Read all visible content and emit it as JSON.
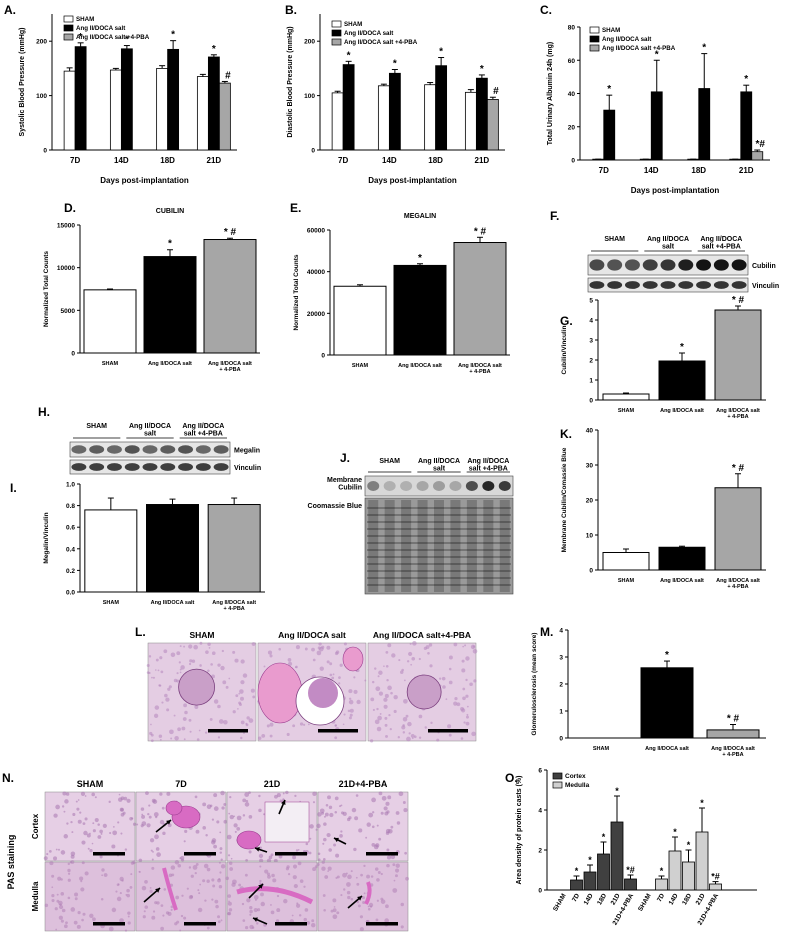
{
  "common": {
    "days_xlabel": "Days post-implantation",
    "groups3": [
      "SHAM",
      "Ang II/DOCA salt",
      "Ang II/DOCA salt\n+ 4-PBA"
    ],
    "legend3": [
      "SHAM",
      "Ang II/DOCA salt",
      "Ang II/DOCA salt +4-PBA"
    ],
    "colors": {
      "sham": "#ffffff",
      "ang": "#000000",
      "pba": "#a6a6a6",
      "cortex": "#404040",
      "medulla": "#d0d0d0"
    }
  },
  "chart_data": [
    {
      "id": "A",
      "type": "bar",
      "panel_label": "A.",
      "ylabel": "Systolic Blood Pressure (mmHg)",
      "xlabel": "Days post-implantation",
      "ylim": [
        0,
        250
      ],
      "yticks": [
        0,
        100,
        200
      ],
      "categories": [
        "7D",
        "14D",
        "18D",
        "21D"
      ],
      "series": [
        {
          "name": "SHAM",
          "values": [
            145,
            147,
            150,
            135
          ],
          "errors": [
            6,
            3,
            5,
            4
          ]
        },
        {
          "name": "Ang II/DOCA salt",
          "values": [
            190,
            186,
            185,
            171
          ],
          "errors": [
            7,
            6,
            16,
            4
          ]
        },
        {
          "name": "Ang II/DOCA salt +4-PBA",
          "values": [
            null,
            null,
            null,
            123
          ],
          "errors": [
            0,
            0,
            0,
            3
          ]
        }
      ],
      "annotations": [
        {
          "text": "*",
          "category": 0,
          "series": 1
        },
        {
          "text": "*",
          "category": 1,
          "series": 1
        },
        {
          "text": "*",
          "category": 2,
          "series": 1
        },
        {
          "text": "*",
          "category": 3,
          "series": 1
        },
        {
          "text": "#",
          "category": 3,
          "series": 2
        }
      ]
    },
    {
      "id": "B",
      "type": "bar",
      "panel_label": "B.",
      "ylabel": "Diastolic Blood Pressure (mmHg)",
      "xlabel": "Days post-implantation",
      "ylim": [
        0,
        250
      ],
      "yticks": [
        0,
        100,
        200
      ],
      "categories": [
        "7D",
        "14D",
        "18D",
        "21D"
      ],
      "series": [
        {
          "name": "SHAM",
          "values": [
            105,
            118,
            120,
            106
          ],
          "errors": [
            3,
            3,
            4,
            5
          ]
        },
        {
          "name": "Ang II/DOCA salt",
          "values": [
            157,
            141,
            155,
            132
          ],
          "errors": [
            6,
            7,
            15,
            6
          ]
        },
        {
          "name": "Ang II/DOCA salt +4-PBA",
          "values": [
            null,
            null,
            null,
            93
          ],
          "errors": [
            0,
            0,
            0,
            4
          ]
        }
      ],
      "annotations": [
        {
          "text": "*",
          "category": 0,
          "series": 1
        },
        {
          "text": "*",
          "category": 1,
          "series": 1
        },
        {
          "text": "*",
          "category": 2,
          "series": 1
        },
        {
          "text": "*",
          "category": 3,
          "series": 1
        },
        {
          "text": "#",
          "category": 3,
          "series": 2
        }
      ]
    },
    {
      "id": "C",
      "type": "bar",
      "panel_label": "C.",
      "ylabel": "Total Urinary Albumin 24h (mg)",
      "xlabel": "Days post-implantation",
      "ylim": [
        0,
        80
      ],
      "yticks": [
        0,
        20,
        40,
        60,
        80
      ],
      "categories": [
        "7D",
        "14D",
        "18D",
        "21D"
      ],
      "series": [
        {
          "name": "SHAM",
          "values": [
            0.5,
            0.5,
            0.5,
            0.5
          ],
          "errors": [
            0,
            0,
            0,
            0
          ]
        },
        {
          "name": "Ang II/DOCA salt",
          "values": [
            30,
            41,
            43,
            41
          ],
          "errors": [
            9,
            19,
            21,
            4
          ]
        },
        {
          "name": "Ang II/DOCA salt +4-PBA",
          "values": [
            null,
            null,
            null,
            5
          ],
          "errors": [
            0,
            0,
            0,
            1
          ]
        }
      ],
      "annotations": [
        {
          "text": "*",
          "category": 0,
          "series": 1
        },
        {
          "text": "*",
          "category": 1,
          "series": 1
        },
        {
          "text": "*",
          "category": 2,
          "series": 1
        },
        {
          "text": "*",
          "category": 3,
          "series": 1
        },
        {
          "text": "*#",
          "category": 3,
          "series": 2
        }
      ]
    },
    {
      "id": "D",
      "type": "bar",
      "panel_label": "D.",
      "title": "CUBILIN",
      "ylabel": "Normalized Total Counts",
      "ylim": [
        0,
        15000
      ],
      "yticks": [
        0,
        5000,
        10000,
        15000
      ],
      "categories": [
        "SHAM",
        "Ang II/DOCA salt",
        "Ang II/DOCA salt\n+ 4-PBA"
      ],
      "values": [
        7400,
        11300,
        13300
      ],
      "errors": [
        100,
        800,
        150
      ],
      "annotations": [
        "",
        "*",
        "* #"
      ]
    },
    {
      "id": "E",
      "type": "bar",
      "panel_label": "E.",
      "title": "MEGALIN",
      "ylabel": "Normalized Total Counts",
      "ylim": [
        0,
        60000
      ],
      "yticks": [
        0,
        20000,
        40000,
        60000
      ],
      "categories": [
        "SHAM",
        "Ang II/DOCA salt",
        "Ang II/DOCA salt\n+ 4-PBA"
      ],
      "values": [
        33000,
        43000,
        54000
      ],
      "errors": [
        700,
        800,
        2500
      ],
      "annotations": [
        "",
        "*",
        "* #"
      ]
    },
    {
      "id": "G",
      "type": "bar",
      "panel_label": "G.",
      "ylabel": "Cubilin/Vinculin",
      "ylim": [
        0,
        5
      ],
      "yticks": [
        0,
        1,
        2,
        3,
        4,
        5
      ],
      "categories": [
        "SHAM",
        "Ang II/DOCA salt",
        "Ang II/DOCA salt\n+ 4-PBA"
      ],
      "values": [
        0.3,
        1.95,
        4.5
      ],
      "errors": [
        0.05,
        0.4,
        0.2
      ],
      "annotations": [
        "",
        "*",
        "* #"
      ]
    },
    {
      "id": "I",
      "type": "bar",
      "panel_label": "I.",
      "ylabel": "Megalin/Vinculin",
      "ylim": [
        0,
        1.0
      ],
      "yticks": [
        0.0,
        0.2,
        0.4,
        0.6,
        0.8,
        1.0
      ],
      "categories": [
        "SHAM",
        "Ang II/DOCA salt",
        "Ang II/DOCA salt\n+ 4-PBA"
      ],
      "values": [
        0.76,
        0.81,
        0.81
      ],
      "errors": [
        0.11,
        0.05,
        0.06
      ],
      "annotations": [
        "",
        "",
        ""
      ]
    },
    {
      "id": "K",
      "type": "bar",
      "panel_label": "K.",
      "ylabel": "Membrane Cubilin/Comassie Blue",
      "ylim": [
        0,
        40
      ],
      "yticks": [
        0,
        10,
        20,
        30,
        40
      ],
      "categories": [
        "SHAM",
        "Ang II/DOCA salt",
        "Ang II/DOCA salt\n+ 4-PBA"
      ],
      "values": [
        5,
        6.5,
        23.5
      ],
      "errors": [
        1,
        0.3,
        4
      ],
      "annotations": [
        "",
        "",
        "* #"
      ]
    },
    {
      "id": "M",
      "type": "bar",
      "panel_label": "M.",
      "ylabel": "Glomerulosclerosis (mean score)",
      "ylim": [
        0,
        4
      ],
      "yticks": [
        0,
        1,
        2,
        3,
        4
      ],
      "categories": [
        "SHAM",
        "Ang II/DOCA salt",
        "Ang II/DOCA salt\n+ 4-PBA"
      ],
      "values": [
        0,
        2.6,
        0.3
      ],
      "errors": [
        0,
        0.25,
        0.2
      ],
      "annotations": [
        "",
        "*",
        "* #"
      ]
    },
    {
      "id": "O",
      "type": "bar",
      "panel_label": "O.",
      "ylabel": "Area density of protein casts (%)",
      "ylim": [
        0,
        6
      ],
      "yticks": [
        0,
        2,
        4,
        6
      ],
      "categories": [
        "SHAM",
        "7D",
        "14D",
        "18D",
        "21D",
        "21D+4-PBA"
      ],
      "series": [
        {
          "name": "Cortex",
          "values": [
            0,
            0.5,
            0.9,
            1.8,
            3.4,
            0.55
          ],
          "errors": [
            0,
            0.2,
            0.35,
            0.6,
            1.3,
            0.2
          ]
        },
        {
          "name": "Medulla",
          "values": [
            0,
            0.55,
            1.95,
            1.4,
            2.9,
            0.3
          ],
          "errors": [
            0,
            0.15,
            0.7,
            0.6,
            1.2,
            0.12
          ]
        }
      ],
      "annotations": [
        {
          "series": 0,
          "category": 1,
          "text": "*"
        },
        {
          "series": 0,
          "category": 2,
          "text": "*"
        },
        {
          "series": 0,
          "category": 3,
          "text": "*"
        },
        {
          "series": 0,
          "category": 4,
          "text": "*"
        },
        {
          "series": 0,
          "category": 5,
          "text": "*#"
        },
        {
          "series": 1,
          "category": 1,
          "text": "*"
        },
        {
          "series": 1,
          "category": 2,
          "text": "*"
        },
        {
          "series": 1,
          "category": 3,
          "text": "*"
        },
        {
          "series": 1,
          "category": 4,
          "text": "*"
        },
        {
          "series": 1,
          "category": 5,
          "text": "*#"
        }
      ]
    }
  ],
  "blots": {
    "F": {
      "panel_label": "F.",
      "groups": [
        "SHAM",
        "Ang II/DOCA\nsalt",
        "Ang II/DOCA\nsalt +4-PBA"
      ],
      "rows": [
        "Cubilin",
        "Vinculin"
      ]
    },
    "H": {
      "panel_label": "H.",
      "groups": [
        "SHAM",
        "Ang II/DOCA\nsalt",
        "Ang II/DOCA\nsalt +4-PBA"
      ],
      "rows": [
        "Megalin",
        "Vinculin"
      ]
    },
    "J": {
      "panel_label": "J.",
      "groups": [
        "SHAM",
        "Ang II/DOCA\nsalt",
        "Ang II/DOCA\nsalt +4-PBA"
      ],
      "rows": [
        "Membrane\nCubilin",
        "Coomassie Blue"
      ]
    }
  },
  "histology": {
    "L": {
      "panel_label": "L.",
      "titles": [
        "SHAM",
        "Ang II/DOCA salt",
        "Ang II/DOCA salt+4-PBA"
      ]
    },
    "N": {
      "panel_label": "N.",
      "titles": [
        "SHAM",
        "7D",
        "21D",
        "21D+4-PBA"
      ],
      "rows": [
        "Cortex",
        "Medulla"
      ],
      "side_label": "PAS staining"
    }
  }
}
